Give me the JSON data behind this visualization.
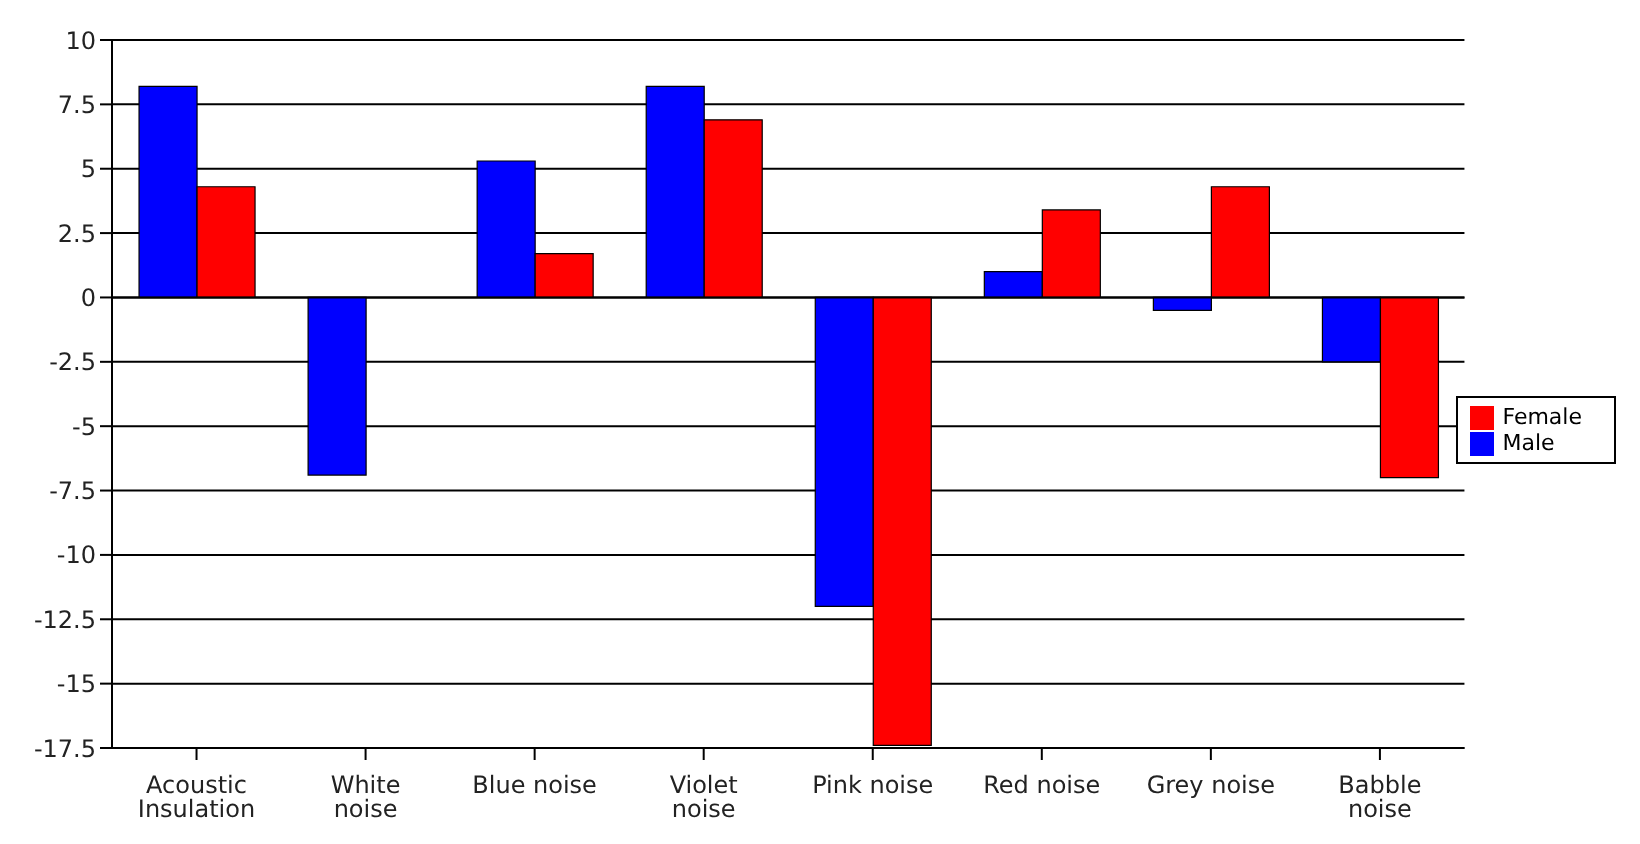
{
  "chart_data": {
    "type": "bar",
    "categories": [
      "Acoustic Insulation",
      "White noise",
      "Blue noise",
      "Violet noise",
      "Pink noise",
      "Red noise",
      "Grey noise",
      "Babble noise"
    ],
    "series": [
      {
        "name": "Male",
        "color": "#0000ff",
        "values": [
          8.2,
          -6.9,
          5.3,
          8.2,
          -12.0,
          1.0,
          -0.5,
          -2.5
        ]
      },
      {
        "name": "Female",
        "color": "#ff0000",
        "values": [
          4.3,
          0,
          1.7,
          6.9,
          -17.4,
          3.4,
          4.3,
          -7.0
        ]
      }
    ],
    "ylim": [
      -17.5,
      10
    ],
    "yticks": [
      -17.5,
      -15,
      -12.5,
      -10,
      -7.5,
      -5,
      -2.5,
      0,
      2.5,
      5,
      7.5,
      10
    ],
    "grid": "y",
    "legend": "right"
  }
}
